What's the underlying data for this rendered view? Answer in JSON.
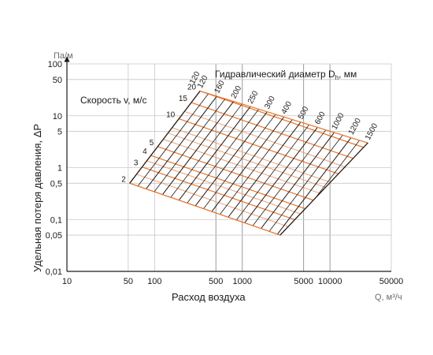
{
  "chart_data": {
    "type": "line",
    "x_unit": "Q, м³/ч",
    "x_label": "Расход воздуха",
    "y_unit": "Па/м",
    "y_label": "Удельная потеря давления, ΔP",
    "x_scale": "log",
    "y_scale": "log",
    "xlim": [
      10,
      50000
    ],
    "ylim": [
      0.01,
      100
    ],
    "x_ticks": [
      10,
      50,
      100,
      500,
      1000,
      5000,
      10000,
      50000
    ],
    "x_tick_labels": [
      "10",
      "50",
      "100",
      "500",
      "1000",
      "5000",
      "10000",
      "50000"
    ],
    "y_ticks": [
      0.01,
      0.05,
      0.1,
      0.5,
      1,
      5,
      10,
      50,
      100
    ],
    "y_tick_labels": [
      "0,01",
      "0,05",
      "0,1",
      "0,5",
      "1",
      "5",
      "10",
      "50",
      "100"
    ],
    "diameter_title": "Гидравлический диаметр D",
    "diameter_sub": "h",
    "diameter_unit": ", мм",
    "velocity_title": "Скорость v, м/с",
    "velocity_lines": [
      {
        "v": 2,
        "label": "2",
        "q_range": [
          52,
          2700
        ]
      },
      {
        "v": 3,
        "label": "3",
        "q_range": [
          78,
          4000
        ]
      },
      {
        "v": 4,
        "label": "4",
        "q_range": [
          104,
          5500
        ]
      },
      {
        "v": 5,
        "label": "5",
        "q_range": [
          130,
          6700
        ]
      },
      {
        "v": 10,
        "label": "10",
        "q_range": [
          260,
          13500
        ]
      },
      {
        "v": 15,
        "label": "15",
        "q_range": [
          390,
          20300
        ]
      },
      {
        "v": 20,
        "label": "20",
        "q_range": [
          520,
          27000
        ]
      }
    ],
    "diameter_lines": [
      {
        "d": 120,
        "label": "120"
      },
      {
        "d": 160,
        "label": "160"
      },
      {
        "d": 200,
        "label": "200"
      },
      {
        "d": 250,
        "label": "250"
      },
      {
        "d": 300,
        "label": "300"
      },
      {
        "d": 400,
        "label": "400"
      },
      {
        "d": 500,
        "label": "500"
      },
      {
        "d": 600,
        "label": "600"
      },
      {
        "d": 1000,
        "label": "1000"
      },
      {
        "d": 1200,
        "label": "1200"
      },
      {
        "d": 1500,
        "label": "1500"
      }
    ],
    "diameter_left_label": "120",
    "emphasized_x": [
      500,
      1000,
      5000,
      10000
    ],
    "grid": true
  }
}
